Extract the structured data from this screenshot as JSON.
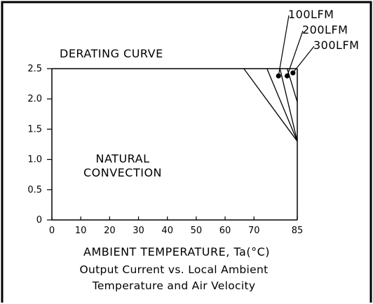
{
  "chart_data": {
    "type": "line",
    "title": "DERATING CURVE",
    "xlabel": "AMBIENT TEMPERATURE, Ta(°C)",
    "ylabel": "",
    "caption_lines": [
      "Output Current vs. Local Ambient",
      "Temperature and Air Velocity"
    ],
    "region_label_lines": [
      "NATURAL",
      "CONVECTION"
    ],
    "xlim": [
      0,
      85
    ],
    "ylim": [
      0,
      2.5
    ],
    "x_ticks": [
      0,
      10,
      20,
      30,
      40,
      50,
      60,
      70,
      85
    ],
    "x_tick_labels": [
      "0",
      "10",
      "20",
      "30",
      "40",
      "50",
      "60",
      "70",
      "85"
    ],
    "y_ticks": [
      0,
      0.5,
      1.0,
      1.5,
      2.0,
      2.5
    ],
    "y_tick_labels": [
      "0",
      "0.5",
      "1.0",
      "1.5",
      "2.0",
      "2.5"
    ],
    "grid": false,
    "legend": "none",
    "series": [
      {
        "name": "",
        "x": [
          0,
          66.5,
          85
        ],
        "y": [
          2.5,
          2.5,
          1.3
        ]
      },
      {
        "name": "100LFM",
        "x": [
          0,
          74.5,
          85
        ],
        "y": [
          2.5,
          2.5,
          1.3
        ]
      },
      {
        "name": "200LFM",
        "x": [
          0,
          79,
          85
        ],
        "y": [
          2.5,
          2.5,
          1.3
        ]
      },
      {
        "name": "300LFM",
        "x": [
          0,
          81.5,
          85
        ],
        "y": [
          2.5,
          2.5,
          1.95
        ]
      }
    ],
    "callouts": [
      {
        "label": "100LFM",
        "point": [
          78.5,
          2.38
        ]
      },
      {
        "label": "200LFM",
        "point": [
          81.5,
          2.38
        ]
      },
      {
        "label": "300LFM",
        "point": [
          83.5,
          2.43
        ]
      }
    ]
  }
}
